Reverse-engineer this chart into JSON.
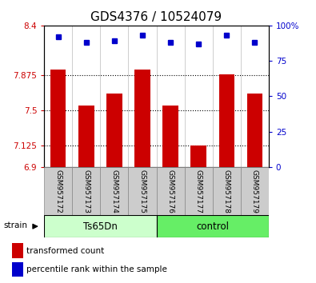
{
  "title": "GDS4376 / 10524079",
  "categories": [
    "GSM957172",
    "GSM957173",
    "GSM957174",
    "GSM957175",
    "GSM957176",
    "GSM957177",
    "GSM957178",
    "GSM957179"
  ],
  "bar_values": [
    7.93,
    7.55,
    7.68,
    7.93,
    7.55,
    7.13,
    7.88,
    7.68
  ],
  "bar_bottom": 6.9,
  "bar_color": "#cc0000",
  "blue_values": [
    92,
    88,
    89,
    93,
    88,
    87,
    93,
    88
  ],
  "blue_color": "#0000cc",
  "ylim_left": [
    6.9,
    8.4
  ],
  "ylim_right": [
    0,
    100
  ],
  "yticks_left": [
    6.9,
    7.125,
    7.5,
    7.875,
    8.4
  ],
  "ytick_labels_left": [
    "6.9",
    "7.125",
    "7.5",
    "7.875",
    "8.4"
  ],
  "yticks_right": [
    0,
    25,
    50,
    75,
    100
  ],
  "ytick_labels_right": [
    "0",
    "25",
    "50",
    "75",
    "100%"
  ],
  "hlines": [
    7.125,
    7.5,
    7.875
  ],
  "group1_label": "Ts65Dn",
  "group2_label": "control",
  "group1_indices": [
    0,
    1,
    2,
    3
  ],
  "group2_indices": [
    4,
    5,
    6,
    7
  ],
  "strain_label": "strain",
  "legend_bar_label": "transformed count",
  "legend_dot_label": "percentile rank within the sample",
  "group1_color": "#ccffcc",
  "group2_color": "#66ee66",
  "tick_color_left": "#cc0000",
  "tick_color_right": "#0000cc",
  "title_fontsize": 11,
  "bar_width": 0.55,
  "plot_bg": "#ffffff",
  "tick_label_area_color": "#cccccc"
}
